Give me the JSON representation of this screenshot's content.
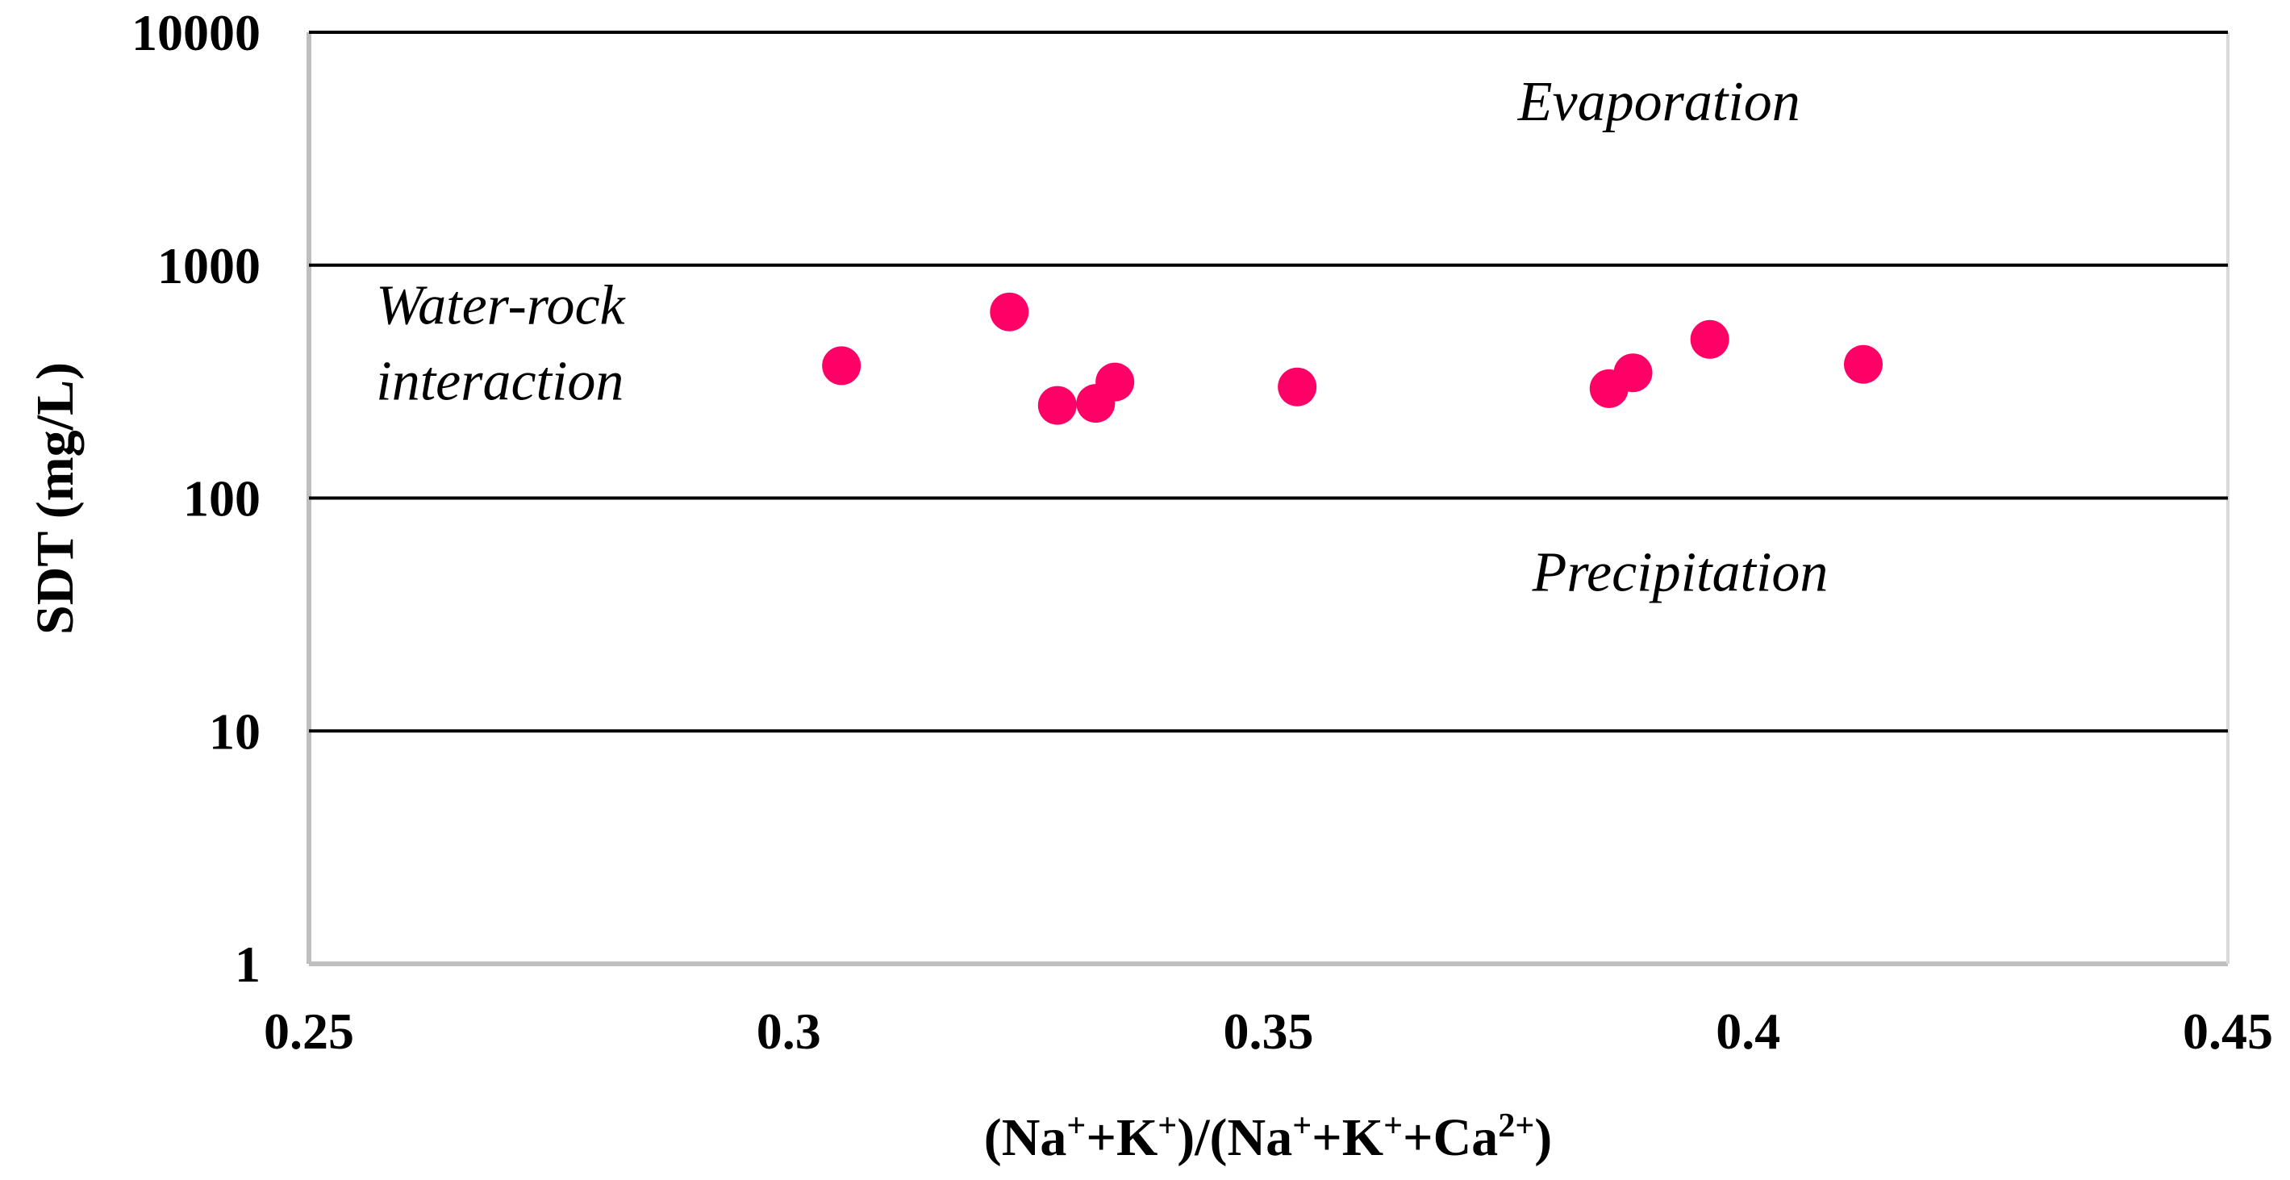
{
  "chart_data": {
    "type": "scatter",
    "xlabel": {
      "parts": [
        {
          "t": "(Na"
        },
        {
          "t": "+",
          "sup": true
        },
        {
          "t": "+K"
        },
        {
          "t": "+",
          "sup": true
        },
        {
          "t": ")/(Na"
        },
        {
          "t": "+",
          "sup": true
        },
        {
          "t": "+K"
        },
        {
          "t": "+",
          "sup": true
        },
        {
          "t": "+Ca"
        },
        {
          "t": "2+",
          "sup": true
        },
        {
          "t": ")"
        }
      ]
    },
    "ylabel": "SDT (mg/L)",
    "xlim": [
      0.25,
      0.45
    ],
    "ylim": [
      1,
      10000
    ],
    "yscale": "log",
    "xticks": [
      0.25,
      0.3,
      0.35,
      0.4,
      0.45
    ],
    "xtick_labels": [
      "0.25",
      "0.3",
      "0.35",
      "0.4",
      "0.45"
    ],
    "yticks": [
      1,
      10,
      100,
      1000,
      10000
    ],
    "ytick_labels": [
      "1",
      "10",
      "100",
      "1000",
      "10000"
    ],
    "marker_color": "#ff0066",
    "points": [
      {
        "x": 0.3055,
        "y": 370
      },
      {
        "x": 0.323,
        "y": 630
      },
      {
        "x": 0.328,
        "y": 250
      },
      {
        "x": 0.332,
        "y": 255
      },
      {
        "x": 0.334,
        "y": 315
      },
      {
        "x": 0.353,
        "y": 300
      },
      {
        "x": 0.3855,
        "y": 295
      },
      {
        "x": 0.388,
        "y": 345
      },
      {
        "x": 0.396,
        "y": 480
      },
      {
        "x": 0.412,
        "y": 375
      }
    ],
    "annotations": [
      {
        "text": "Evaporation",
        "x": 0.376,
        "y": 4200
      },
      {
        "text": "Water-rock",
        "x": 0.257,
        "y": 560
      },
      {
        "text": "interaction",
        "x": 0.257,
        "y": 265
      },
      {
        "text": "Precipitation",
        "x": 0.3775,
        "y": 40
      }
    ]
  }
}
